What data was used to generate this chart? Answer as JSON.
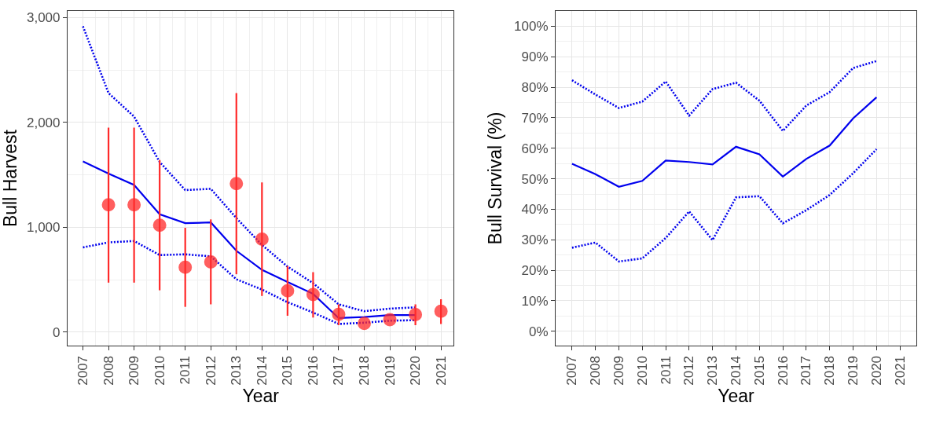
{
  "chart_data": [
    {
      "type": "line",
      "xlabel": "Year",
      "ylabel": "Bull Harvest",
      "x": [
        2007,
        2008,
        2009,
        2010,
        2011,
        2012,
        2013,
        2014,
        2015,
        2016,
        2017,
        2018,
        2019,
        2020
      ],
      "xlim": [
        2006.4,
        2021.5
      ],
      "xticks": [
        2007,
        2008,
        2009,
        2010,
        2011,
        2012,
        2013,
        2014,
        2015,
        2016,
        2017,
        2018,
        2019,
        2020,
        2021
      ],
      "ylim": [
        -129,
        3063
      ],
      "yticks": [
        0,
        {
          "value": 1000,
          "label": "1,000"
        },
        {
          "value": 2000,
          "label": "2,000"
        },
        {
          "value": 3000,
          "label": "3,000"
        }
      ],
      "grid": true,
      "series": [
        {
          "color": "#0000ee",
          "line_style": "solid",
          "marker": "none",
          "values": [
            1628,
            1513,
            1404,
            1124,
            1039,
            1046,
            776,
            594,
            479,
            365,
            134,
            144,
            163,
            163
          ]
        },
        {
          "color": "#0000ee",
          "line_style": "dotted",
          "marker": "none",
          "values": [
            2917,
            2280,
            2056,
            1623,
            1355,
            1367,
            1088,
            832,
            625,
            467,
            265,
            200,
            224,
            236
          ]
        },
        {
          "color": "#0000ee",
          "line_style": "dotted",
          "marker": "none",
          "values": [
            808,
            856,
            869,
            735,
            742,
            723,
            504,
            406,
            285,
            187,
            78,
            90,
            109,
            114
          ]
        },
        {
          "type": "scatter",
          "color": "#ff2a2a",
          "marker": "circle",
          "x": [
            2008,
            2009,
            2010,
            2011,
            2012,
            2013,
            2014,
            2015,
            2016,
            2017,
            2018,
            2019,
            2020,
            2021
          ],
          "values": [
            1214,
            1214,
            1019,
            618,
            669,
            1416,
            886,
            394,
            358,
            170,
            83,
            119,
            168,
            200
          ],
          "errors": [
            [
              472,
              1951
            ],
            [
              472,
              1951
            ],
            [
              399,
              1642
            ],
            [
              241,
              995
            ],
            [
              265,
              1075
            ],
            [
              552,
              2280
            ],
            [
              345,
              1428
            ],
            [
              156,
              630
            ],
            [
              139,
              572
            ],
            [
              66,
              265
            ],
            null,
            null,
            [
              66,
              265
            ],
            [
              78,
              314
            ]
          ]
        }
      ]
    },
    {
      "type": "line",
      "xlabel": "Year",
      "ylabel": "Bull Survival (%)",
      "x": [
        2007,
        2008,
        2009,
        2010,
        2011,
        2012,
        2013,
        2014,
        2015,
        2016,
        2017,
        2018,
        2019,
        2020
      ],
      "xlim": [
        2006.3,
        2021.7
      ],
      "xticks": [
        2007,
        2008,
        2009,
        2010,
        2011,
        2012,
        2013,
        2014,
        2015,
        2016,
        2017,
        2018,
        2019,
        2020,
        2021
      ],
      "ylim": [
        -4.7,
        105
      ],
      "yticks": [
        {
          "value": 0,
          "label": "0%"
        },
        {
          "value": 10,
          "label": "10%"
        },
        {
          "value": 20,
          "label": "20%"
        },
        {
          "value": 30,
          "label": "30%"
        },
        {
          "value": 40,
          "label": "40%"
        },
        {
          "value": 50,
          "label": "50%"
        },
        {
          "value": 60,
          "label": "60%"
        },
        {
          "value": 70,
          "label": "70%"
        },
        {
          "value": 80,
          "label": "80%"
        },
        {
          "value": 90,
          "label": "90%"
        },
        {
          "value": 100,
          "label": "100%"
        }
      ],
      "grid": true,
      "series": [
        {
          "color": "#0000ee",
          "line_style": "solid",
          "marker": "none",
          "values": [
            54.9,
            51.5,
            47.4,
            49.3,
            56.0,
            55.5,
            54.7,
            60.5,
            58.0,
            50.7,
            56.5,
            60.9,
            69.8,
            76.7
          ]
        },
        {
          "color": "#0000ee",
          "line_style": "dotted",
          "marker": "none",
          "values": [
            82.3,
            77.6,
            73.2,
            75.3,
            81.9,
            70.7,
            79.4,
            81.5,
            75.6,
            65.7,
            74.0,
            78.4,
            86.3,
            88.6
          ]
        },
        {
          "color": "#0000ee",
          "line_style": "dotted",
          "marker": "none",
          "values": [
            27.4,
            29.1,
            22.9,
            23.9,
            30.6,
            39.3,
            29.9,
            43.9,
            44.3,
            35.4,
            39.7,
            44.7,
            51.8,
            59.7
          ]
        }
      ]
    }
  ]
}
